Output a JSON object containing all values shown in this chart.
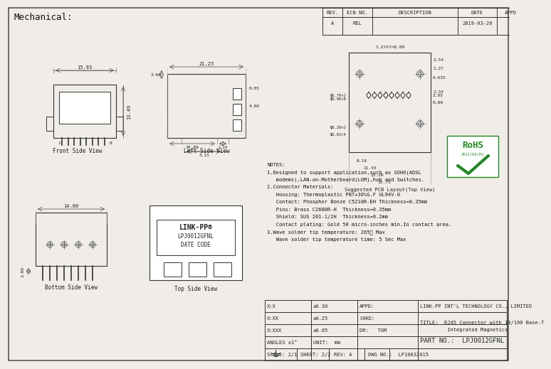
{
  "title": "Mechanical:",
  "background": "#f0ede8",
  "border_color": "#555555",
  "line_color": "#333333",
  "header_table": {
    "cols": [
      "REV.",
      "ECN NO.",
      "DESCRIPTION",
      "DATE",
      "APPD"
    ],
    "row": [
      "A",
      "REL",
      "",
      "2019-03-20",
      ""
    ]
  },
  "notes": [
    "NOTES:",
    "1.Designed to support application,such as SOHO(ADSL",
    "   modems),LAN-on-Motherboard(LOM),hub and Switches.",
    "2.Connector Materials:",
    "   Housing: Thermoplastic PBT+30%G.F UL94V-0",
    "   Contact: Phosphor Bonze C5210R-EH Thickness=0.35mm",
    "   Pins: Brass C2680R-H  Thickness=0.35mm",
    "   Shield: SUS 201-1/2H  Thickness=0.2mm",
    "   Contact plating: Gold 50 micro-inches min.In contact area.",
    "3.Wave solder tip temperature: 265℃ Max",
    "   Wave solder tip temperature time: 5 Sec Max"
  ],
  "footer_table": {
    "tolerances": [
      [
        "X:X",
        "±0.30",
        "APPD:"
      ],
      [
        "X:XX",
        "±0.25",
        "CHKD:"
      ],
      [
        "X:XXX",
        "±0.05",
        "DR:   TOM"
      ],
      [
        "ANGLES ±1°",
        "UNIT:  mm",
        ""
      ]
    ],
    "scale": "2/1",
    "sheet": "2/2",
    "rev": "A",
    "dwg_no": "LP10032015",
    "company": "LINK-PP INT'L TECHNOLOGY CO., LIMITED",
    "title_text": "TITLE:  RJ45 Connector with 10/100 Base-T\n            Integrated Magnetics",
    "part_no": "PART NO.:   LPJ0012GFNL"
  },
  "view_labels": {
    "front": "Front Side View",
    "left": "Left Side View",
    "pcb": "Suggested PCB Layout(Top View)",
    "bottom": "Bottom Side View",
    "top": "Top Side View"
  }
}
